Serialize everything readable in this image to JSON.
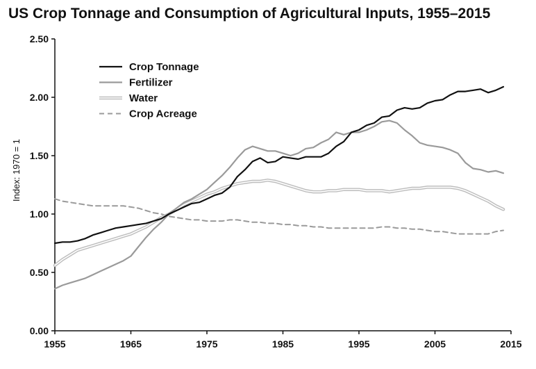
{
  "chart_data": {
    "type": "line",
    "title": "US Crop Tonnage and Consumption of Agricultural Inputs, 1955–2015",
    "xlabel": "",
    "ylabel": "Index: 1970 = 1",
    "xlim": [
      1955,
      2015
    ],
    "ylim": [
      0,
      2.5
    ],
    "x_ticks": [
      "1955",
      "1965",
      "1975",
      "1985",
      "1995",
      "2005",
      "2015"
    ],
    "y_ticks": [
      "0.00",
      "0.50",
      "1.00",
      "1.50",
      "2.00",
      "2.50"
    ],
    "x_tick_values": [
      1955,
      1965,
      1975,
      1985,
      1995,
      2005,
      2015
    ],
    "y_tick_values": [
      0,
      0.5,
      1.0,
      1.5,
      2.0,
      2.5
    ],
    "grid": false,
    "legend_position": "top-left",
    "series": [
      {
        "name": "Crop Tonnage",
        "color": "#111111",
        "style": "solid",
        "x": [
          1955,
          1956,
          1957,
          1958,
          1959,
          1960,
          1961,
          1962,
          1963,
          1964,
          1965,
          1966,
          1967,
          1968,
          1969,
          1970,
          1971,
          1972,
          1973,
          1974,
          1975,
          1976,
          1977,
          1978,
          1979,
          1980,
          1981,
          1982,
          1983,
          1984,
          1985,
          1986,
          1987,
          1988,
          1989,
          1990,
          1991,
          1992,
          1993,
          1994,
          1995,
          1996,
          1997,
          1998,
          1999,
          2000,
          2001,
          2002,
          2003,
          2004,
          2005,
          2006,
          2007,
          2008,
          2009,
          2010,
          2011,
          2012,
          2013,
          2014
        ],
        "y": [
          0.75,
          0.76,
          0.76,
          0.77,
          0.79,
          0.82,
          0.84,
          0.86,
          0.88,
          0.89,
          0.9,
          0.91,
          0.92,
          0.94,
          0.96,
          1.0,
          1.03,
          1.06,
          1.09,
          1.1,
          1.13,
          1.16,
          1.18,
          1.23,
          1.32,
          1.38,
          1.45,
          1.48,
          1.44,
          1.45,
          1.49,
          1.48,
          1.47,
          1.49,
          1.49,
          1.49,
          1.52,
          1.58,
          1.62,
          1.7,
          1.72,
          1.76,
          1.78,
          1.83,
          1.84,
          1.89,
          1.91,
          1.9,
          1.91,
          1.95,
          1.97,
          1.98,
          2.02,
          2.05,
          2.05,
          2.06,
          2.07,
          2.04,
          2.06,
          2.09
        ]
      },
      {
        "name": "Fertilizer",
        "color": "#9a9a9a",
        "style": "solid",
        "x": [
          1955,
          1956,
          1957,
          1958,
          1959,
          1960,
          1961,
          1962,
          1963,
          1964,
          1965,
          1966,
          1967,
          1968,
          1969,
          1970,
          1971,
          1972,
          1973,
          1974,
          1975,
          1976,
          1977,
          1978,
          1979,
          1980,
          1981,
          1982,
          1983,
          1984,
          1985,
          1986,
          1987,
          1988,
          1989,
          1990,
          1991,
          1992,
          1993,
          1994,
          1995,
          1996,
          1997,
          1998,
          1999,
          2000,
          2001,
          2002,
          2003,
          2004,
          2005,
          2006,
          2007,
          2008,
          2009,
          2010,
          2011,
          2012,
          2013,
          2014
        ],
        "y": [
          0.36,
          0.39,
          0.41,
          0.43,
          0.45,
          0.48,
          0.51,
          0.54,
          0.57,
          0.6,
          0.64,
          0.72,
          0.8,
          0.87,
          0.93,
          1.0,
          1.05,
          1.1,
          1.13,
          1.17,
          1.21,
          1.27,
          1.33,
          1.4,
          1.48,
          1.55,
          1.58,
          1.56,
          1.54,
          1.54,
          1.52,
          1.5,
          1.52,
          1.56,
          1.57,
          1.61,
          1.64,
          1.7,
          1.68,
          1.7,
          1.7,
          1.72,
          1.75,
          1.79,
          1.8,
          1.78,
          1.72,
          1.67,
          1.61,
          1.59,
          1.58,
          1.57,
          1.55,
          1.52,
          1.44,
          1.39,
          1.38,
          1.36,
          1.37,
          1.35
        ]
      },
      {
        "name": "Water",
        "color": "#c8c8c8",
        "style": "double",
        "x": [
          1955,
          1956,
          1957,
          1958,
          1959,
          1960,
          1961,
          1962,
          1963,
          1964,
          1965,
          1966,
          1967,
          1968,
          1969,
          1970,
          1971,
          1972,
          1973,
          1974,
          1975,
          1976,
          1977,
          1978,
          1979,
          1980,
          1981,
          1982,
          1983,
          1984,
          1985,
          1986,
          1987,
          1988,
          1989,
          1990,
          1991,
          1992,
          1993,
          1994,
          1995,
          1996,
          1997,
          1998,
          1999,
          2000,
          2001,
          2002,
          2003,
          2004,
          2005,
          2006,
          2007,
          2008,
          2009,
          2010,
          2011,
          2012,
          2013,
          2014
        ],
        "y": [
          0.56,
          0.61,
          0.65,
          0.69,
          0.71,
          0.73,
          0.75,
          0.77,
          0.79,
          0.81,
          0.83,
          0.86,
          0.89,
          0.93,
          0.97,
          1.0,
          1.04,
          1.08,
          1.11,
          1.14,
          1.17,
          1.19,
          1.22,
          1.24,
          1.26,
          1.27,
          1.28,
          1.28,
          1.29,
          1.28,
          1.26,
          1.24,
          1.22,
          1.2,
          1.19,
          1.19,
          1.2,
          1.2,
          1.21,
          1.21,
          1.21,
          1.2,
          1.2,
          1.2,
          1.19,
          1.2,
          1.21,
          1.22,
          1.22,
          1.23,
          1.23,
          1.23,
          1.23,
          1.22,
          1.2,
          1.17,
          1.14,
          1.11,
          1.07,
          1.04
        ]
      },
      {
        "name": "Crop Acreage",
        "color": "#9a9a9a",
        "style": "dashed",
        "x": [
          1955,
          1956,
          1957,
          1958,
          1959,
          1960,
          1961,
          1962,
          1963,
          1964,
          1965,
          1966,
          1967,
          1968,
          1969,
          1970,
          1971,
          1972,
          1973,
          1974,
          1975,
          1976,
          1977,
          1978,
          1979,
          1980,
          1981,
          1982,
          1983,
          1984,
          1985,
          1986,
          1987,
          1988,
          1989,
          1990,
          1991,
          1992,
          1993,
          1994,
          1995,
          1996,
          1997,
          1998,
          1999,
          2000,
          2001,
          2002,
          2003,
          2004,
          2005,
          2006,
          2007,
          2008,
          2009,
          2010,
          2011,
          2012,
          2013,
          2014
        ],
        "y": [
          1.13,
          1.11,
          1.1,
          1.09,
          1.08,
          1.07,
          1.07,
          1.07,
          1.07,
          1.07,
          1.06,
          1.05,
          1.03,
          1.01,
          1.0,
          0.98,
          0.97,
          0.96,
          0.95,
          0.95,
          0.94,
          0.94,
          0.94,
          0.95,
          0.95,
          0.94,
          0.93,
          0.93,
          0.92,
          0.92,
          0.91,
          0.91,
          0.9,
          0.9,
          0.89,
          0.89,
          0.88,
          0.88,
          0.88,
          0.88,
          0.88,
          0.88,
          0.88,
          0.89,
          0.89,
          0.88,
          0.88,
          0.87,
          0.87,
          0.86,
          0.85,
          0.85,
          0.84,
          0.83,
          0.83,
          0.83,
          0.83,
          0.83,
          0.85,
          0.86
        ]
      }
    ]
  }
}
